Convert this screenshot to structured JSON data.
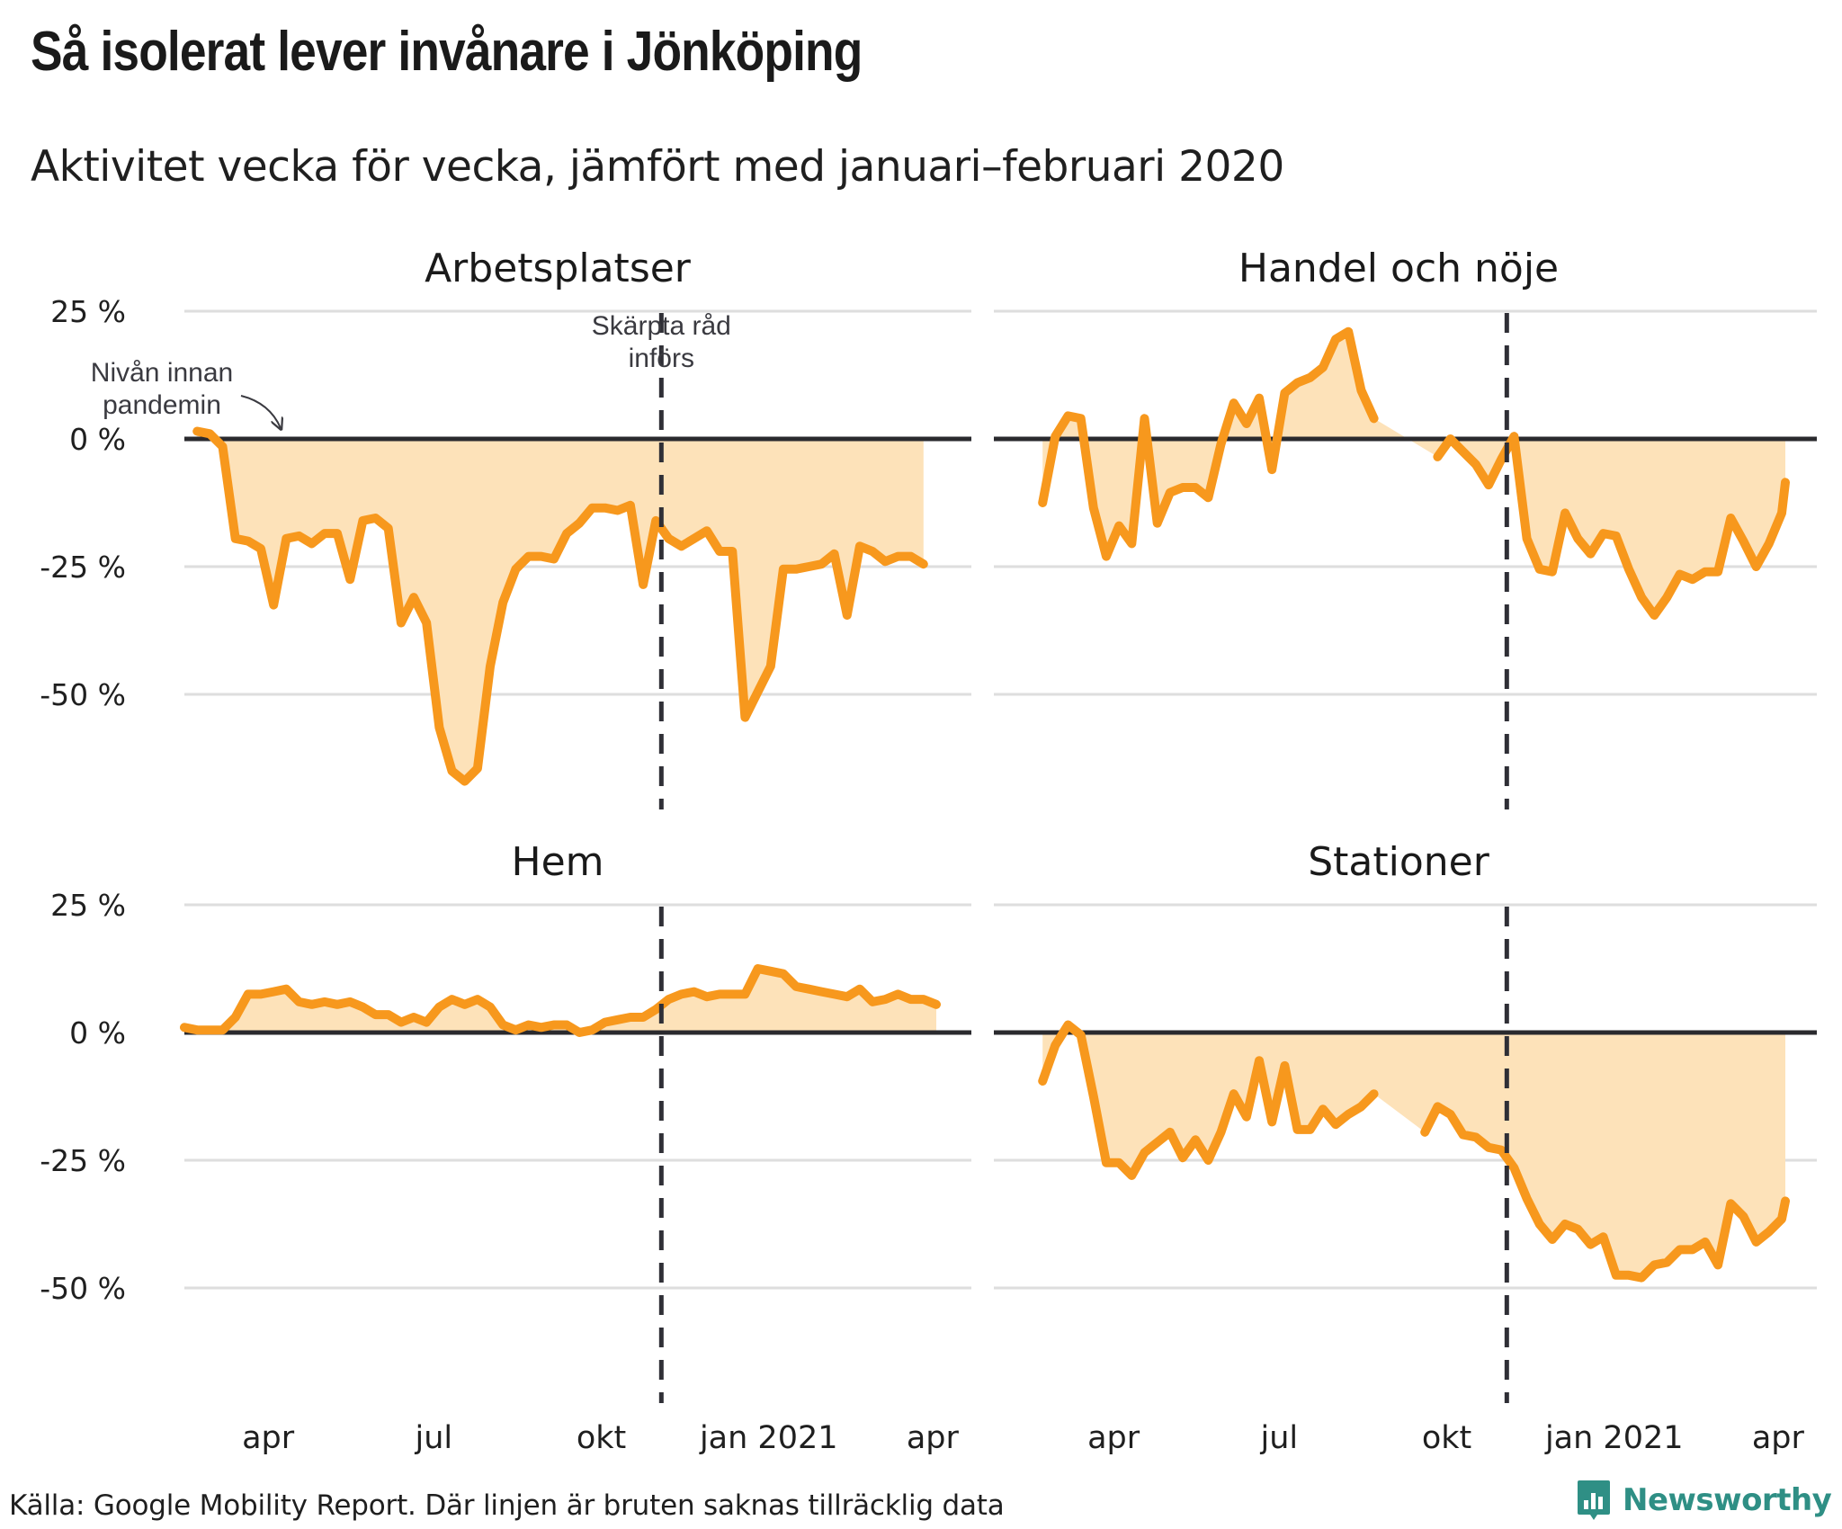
{
  "header": {
    "title": "Så isolerat lever invånare i Jönköping",
    "subtitle": "Aktivitet vecka för vecka, jämfört med januari–februari 2020"
  },
  "footer": {
    "source": "Källa: Google Mobility Report. Där linjen är bruten saknas tillräcklig data",
    "brand": "Newsworthy",
    "brand_color": "#2f8f85"
  },
  "colors": {
    "line": "#f7981d",
    "area": "#fde2b9",
    "zero_line": "#2a2a2e",
    "grid": "#dedede"
  },
  "chart_data": {
    "type": "line",
    "title": "Så isolerat lever invånare i Jönköping",
    "subtitle": "Aktivitet vecka för vecka, jämfört med januari–februari 2020",
    "layout": "2x2 facets",
    "area_fill_to": 0,
    "ylim": [
      -75,
      25
    ],
    "y_ticks": [
      25,
      0,
      -25,
      -50
    ],
    "y_tick_labels": [
      "25 %",
      "0 %",
      "-25 %",
      "-50 %"
    ],
    "xlim": [
      "2020-02-15",
      "2021-04-05"
    ],
    "x_ticks": [
      "2020-04-01",
      "2020-07-01",
      "2020-10-01",
      "2021-01-01",
      "2021-04-01"
    ],
    "x_tick_labels": [
      "apr",
      "jul",
      "okt",
      "jan 2021",
      "apr"
    ],
    "grid": "horizontal",
    "event": {
      "date": "2020-11-03",
      "label_lines": [
        "Skärpta råd",
        "införs"
      ]
    },
    "baseline_annotation": {
      "label_lines": [
        "Nivån innan",
        "pandemin"
      ]
    },
    "panels": [
      {
        "name": "Arbetsplatser",
        "segments": [
          [
            [
              "2020-02-22",
              1.5
            ],
            [
              "2020-02-29",
              1.0
            ],
            [
              "2020-03-07",
              -1.5
            ],
            [
              "2020-03-14",
              -19.5
            ],
            [
              "2020-03-21",
              -20.0
            ],
            [
              "2020-03-28",
              -21.5
            ],
            [
              "2020-04-04",
              -32.5
            ],
            [
              "2020-04-11",
              -19.5
            ],
            [
              "2020-04-18",
              -19.0
            ],
            [
              "2020-04-25",
              -20.5
            ],
            [
              "2020-05-02",
              -18.5
            ],
            [
              "2020-05-09",
              -18.5
            ],
            [
              "2020-05-16",
              -27.5
            ],
            [
              "2020-05-23",
              -16.0
            ],
            [
              "2020-05-30",
              -15.5
            ],
            [
              "2020-06-06",
              -17.5
            ],
            [
              "2020-06-13",
              -36.0
            ],
            [
              "2020-06-20",
              -31.0
            ],
            [
              "2020-06-27",
              -36.0
            ],
            [
              "2020-07-04",
              -56.5
            ],
            [
              "2020-07-11",
              -65.0
            ],
            [
              "2020-07-18",
              -67.0
            ],
            [
              "2020-07-25",
              -64.5
            ],
            [
              "2020-08-01",
              -44.5
            ],
            [
              "2020-08-08",
              -32.0
            ],
            [
              "2020-08-15",
              -25.5
            ],
            [
              "2020-08-22",
              -23.0
            ],
            [
              "2020-08-29",
              -23.0
            ],
            [
              "2020-09-05",
              -23.5
            ],
            [
              "2020-09-12",
              -18.5
            ],
            [
              "2020-09-19",
              -16.5
            ],
            [
              "2020-09-26",
              -13.5
            ],
            [
              "2020-10-03",
              -13.5
            ],
            [
              "2020-10-10",
              -14.0
            ],
            [
              "2020-10-17",
              -13.0
            ],
            [
              "2020-10-24",
              -28.5
            ],
            [
              "2020-10-31",
              -16.0
            ],
            [
              "2020-11-07",
              -19.5
            ],
            [
              "2020-11-14",
              -21.0
            ],
            [
              "2020-11-21",
              -19.5
            ],
            [
              "2020-11-28",
              -18.0
            ],
            [
              "2020-12-05",
              -22.0
            ],
            [
              "2020-12-12",
              -22.0
            ],
            [
              "2020-12-19",
              -54.5
            ],
            [
              "2020-12-26",
              -49.5
            ],
            [
              "2021-01-02",
              -44.5
            ],
            [
              "2021-01-09",
              -25.5
            ],
            [
              "2021-01-16",
              -25.5
            ],
            [
              "2021-01-23",
              -25.0
            ],
            [
              "2021-01-30",
              -24.5
            ],
            [
              "2021-02-06",
              -22.5
            ],
            [
              "2021-02-13",
              -34.5
            ],
            [
              "2021-02-20",
              -21.0
            ],
            [
              "2021-02-27",
              -22.0
            ],
            [
              "2021-03-06",
              -24.0
            ],
            [
              "2021-03-13",
              -23.0
            ],
            [
              "2021-03-20",
              -23.0
            ],
            [
              "2021-03-27",
              -24.5
            ]
          ]
        ]
      },
      {
        "name": "Handel och nöje",
        "segments": [
          [
            [
              "2020-02-22",
              -12.5
            ],
            [
              "2020-02-29",
              0.5
            ],
            [
              "2020-03-07",
              4.5
            ],
            [
              "2020-03-14",
              4.0
            ],
            [
              "2020-03-21",
              -13.5
            ],
            [
              "2020-03-28",
              -23.0
            ],
            [
              "2020-04-04",
              -17.0
            ],
            [
              "2020-04-11",
              -20.5
            ],
            [
              "2020-04-18",
              4.0
            ],
            [
              "2020-04-25",
              -16.5
            ],
            [
              "2020-05-02",
              -10.5
            ],
            [
              "2020-05-09",
              -9.5
            ],
            [
              "2020-05-16",
              -9.5
            ],
            [
              "2020-05-23",
              -11.5
            ],
            [
              "2020-05-30",
              -1.0
            ],
            [
              "2020-06-06",
              7.0
            ],
            [
              "2020-06-13",
              3.0
            ],
            [
              "2020-06-20",
              8.0
            ],
            [
              "2020-06-27",
              -6.0
            ],
            [
              "2020-07-04",
              9.0
            ],
            [
              "2020-07-11",
              11.0
            ],
            [
              "2020-07-18",
              12.0
            ],
            [
              "2020-07-25",
              14.0
            ],
            [
              "2020-08-01",
              19.5
            ],
            [
              "2020-08-08",
              21.0
            ],
            [
              "2020-08-15",
              9.5
            ],
            [
              "2020-08-22",
              4.0
            ]
          ],
          [
            [
              "2020-09-26",
              -3.5
            ],
            [
              "2020-10-03",
              0.0
            ],
            [
              "2020-10-10",
              -2.5
            ],
            [
              "2020-10-17",
              -5.0
            ],
            [
              "2020-10-24",
              -9.0
            ],
            [
              "2020-10-31",
              -4.0
            ],
            [
              "2020-11-07",
              0.5
            ],
            [
              "2020-11-14",
              -19.5
            ],
            [
              "2020-11-21",
              -25.5
            ],
            [
              "2020-11-28",
              -26.0
            ],
            [
              "2020-12-05",
              -14.5
            ],
            [
              "2020-12-12",
              -19.5
            ],
            [
              "2020-12-19",
              -22.5
            ],
            [
              "2020-12-26",
              -18.5
            ],
            [
              "2021-01-02",
              -19.0
            ],
            [
              "2021-01-09",
              -25.5
            ],
            [
              "2021-01-16",
              -31.0
            ],
            [
              "2021-01-23",
              -34.5
            ],
            [
              "2021-01-30",
              -31.0
            ],
            [
              "2021-02-06",
              -26.5
            ],
            [
              "2021-02-13",
              -27.5
            ],
            [
              "2021-02-20",
              -26.0
            ],
            [
              "2021-02-27",
              -26.0
            ],
            [
              "2021-03-06",
              -15.5
            ],
            [
              "2021-03-13",
              -20.0
            ],
            [
              "2021-03-20",
              -25.0
            ],
            [
              "2021-03-27",
              -20.5
            ],
            [
              "2021-04-03",
              -14.5
            ],
            [
              "2021-04-05",
              -8.5
            ]
          ]
        ]
      },
      {
        "name": "Hem",
        "segments": [
          [
            [
              "2020-02-15",
              1.0
            ],
            [
              "2020-02-22",
              0.5
            ],
            [
              "2020-02-29",
              0.5
            ],
            [
              "2020-03-07",
              0.5
            ],
            [
              "2020-03-14",
              3.0
            ],
            [
              "2020-03-21",
              7.5
            ],
            [
              "2020-03-28",
              7.5
            ],
            [
              "2020-04-04",
              8.0
            ],
            [
              "2020-04-11",
              8.5
            ],
            [
              "2020-04-18",
              6.0
            ],
            [
              "2020-04-25",
              5.5
            ],
            [
              "2020-05-02",
              6.0
            ],
            [
              "2020-05-09",
              5.5
            ],
            [
              "2020-05-16",
              6.0
            ],
            [
              "2020-05-23",
              5.0
            ],
            [
              "2020-05-30",
              3.5
            ],
            [
              "2020-06-06",
              3.5
            ],
            [
              "2020-06-13",
              2.0
            ],
            [
              "2020-06-20",
              3.0
            ],
            [
              "2020-06-27",
              2.0
            ],
            [
              "2020-07-04",
              5.0
            ],
            [
              "2020-07-11",
              6.5
            ],
            [
              "2020-07-18",
              5.5
            ],
            [
              "2020-07-25",
              6.5
            ],
            [
              "2020-08-01",
              5.0
            ],
            [
              "2020-08-08",
              1.5
            ],
            [
              "2020-08-15",
              0.5
            ],
            [
              "2020-08-22",
              1.5
            ],
            [
              "2020-08-29",
              1.0
            ],
            [
              "2020-09-05",
              1.5
            ],
            [
              "2020-09-12",
              1.5
            ],
            [
              "2020-09-19",
              0.0
            ],
            [
              "2020-09-26",
              0.5
            ],
            [
              "2020-10-03",
              2.0
            ],
            [
              "2020-10-10",
              2.5
            ],
            [
              "2020-10-17",
              3.0
            ],
            [
              "2020-10-24",
              3.0
            ],
            [
              "2020-10-31",
              4.5
            ],
            [
              "2020-11-07",
              6.5
            ],
            [
              "2020-11-14",
              7.5
            ],
            [
              "2020-11-21",
              8.0
            ],
            [
              "2020-11-28",
              7.0
            ],
            [
              "2020-12-05",
              7.5
            ],
            [
              "2020-12-12",
              7.5
            ],
            [
              "2020-12-19",
              7.5
            ],
            [
              "2020-12-26",
              12.5
            ],
            [
              "2021-01-02",
              12.0
            ],
            [
              "2021-01-09",
              11.5
            ],
            [
              "2021-01-16",
              9.0
            ],
            [
              "2021-01-23",
              8.5
            ],
            [
              "2021-01-30",
              8.0
            ],
            [
              "2021-02-06",
              7.5
            ],
            [
              "2021-02-13",
              7.0
            ],
            [
              "2021-02-20",
              8.5
            ],
            [
              "2021-02-27",
              6.0
            ],
            [
              "2021-03-06",
              6.5
            ],
            [
              "2021-03-13",
              7.5
            ],
            [
              "2021-03-20",
              6.5
            ],
            [
              "2021-03-27",
              6.5
            ],
            [
              "2021-04-03",
              5.5
            ]
          ]
        ]
      },
      {
        "name": "Stationer",
        "segments": [
          [
            [
              "2020-02-22",
              -9.5
            ],
            [
              "2020-02-29",
              -2.5
            ],
            [
              "2020-03-07",
              1.5
            ],
            [
              "2020-03-14",
              -0.5
            ],
            [
              "2020-03-21",
              -12.5
            ],
            [
              "2020-03-28",
              -25.5
            ],
            [
              "2020-04-04",
              -25.5
            ],
            [
              "2020-04-11",
              -28.0
            ],
            [
              "2020-04-18",
              -23.5
            ],
            [
              "2020-04-25",
              -21.5
            ],
            [
              "2020-05-02",
              -19.5
            ],
            [
              "2020-05-09",
              -24.5
            ],
            [
              "2020-05-16",
              -21.0
            ],
            [
              "2020-05-23",
              -25.0
            ],
            [
              "2020-05-30",
              -19.5
            ],
            [
              "2020-06-06",
              -12.0
            ],
            [
              "2020-06-13",
              -16.5
            ],
            [
              "2020-06-20",
              -5.5
            ],
            [
              "2020-06-27",
              -17.5
            ],
            [
              "2020-07-04",
              -6.5
            ],
            [
              "2020-07-11",
              -19.0
            ],
            [
              "2020-07-18",
              -19.0
            ],
            [
              "2020-07-25",
              -15.0
            ],
            [
              "2020-08-01",
              -18.0
            ],
            [
              "2020-08-08",
              -16.0
            ],
            [
              "2020-08-15",
              -14.5
            ],
            [
              "2020-08-22",
              -12.0
            ]
          ],
          [
            [
              "2020-09-19",
              -19.5
            ],
            [
              "2020-09-26",
              -14.5
            ],
            [
              "2020-10-03",
              -16.0
            ],
            [
              "2020-10-10",
              -20.0
            ],
            [
              "2020-10-17",
              -20.5
            ],
            [
              "2020-10-24",
              -22.5
            ],
            [
              "2020-10-31",
              -23.0
            ],
            [
              "2020-11-07",
              -26.5
            ],
            [
              "2020-11-14",
              -32.5
            ],
            [
              "2020-11-21",
              -37.5
            ],
            [
              "2020-11-28",
              -40.5
            ],
            [
              "2020-12-05",
              -37.5
            ],
            [
              "2020-12-12",
              -38.5
            ],
            [
              "2020-12-19",
              -41.5
            ],
            [
              "2020-12-26",
              -40.0
            ],
            [
              "2021-01-02",
              -47.5
            ],
            [
              "2021-01-09",
              -47.5
            ],
            [
              "2021-01-16",
              -48.0
            ],
            [
              "2021-01-23",
              -45.5
            ],
            [
              "2021-01-30",
              -45.0
            ],
            [
              "2021-02-06",
              -42.5
            ],
            [
              "2021-02-13",
              -42.5
            ],
            [
              "2021-02-20",
              -41.0
            ],
            [
              "2021-02-27",
              -45.5
            ],
            [
              "2021-03-06",
              -33.5
            ],
            [
              "2021-03-13",
              -36.0
            ],
            [
              "2021-03-20",
              -41.0
            ],
            [
              "2021-03-27",
              -39.0
            ],
            [
              "2021-04-03",
              -36.5
            ],
            [
              "2021-04-05",
              -33.0
            ]
          ]
        ]
      }
    ]
  }
}
